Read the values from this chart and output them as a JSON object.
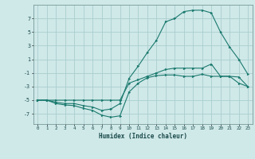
{
  "xlabel": "Humidex (Indice chaleur)",
  "xlim": [
    -0.5,
    23.5
  ],
  "ylim": [
    -8.5,
    9.0
  ],
  "yticks": [
    -7,
    -5,
    -3,
    -1,
    1,
    3,
    5,
    7
  ],
  "xticks": [
    0,
    1,
    2,
    3,
    4,
    5,
    6,
    7,
    8,
    9,
    10,
    11,
    12,
    13,
    14,
    15,
    16,
    17,
    18,
    19,
    20,
    21,
    22,
    23
  ],
  "background_color": "#cfe8e8",
  "grid_color": "#aacece",
  "line_color": "#1a7a6e",
  "line1_x": [
    0,
    1,
    2,
    3,
    4,
    5,
    6,
    7,
    8,
    9,
    10,
    11,
    12,
    13,
    14,
    15,
    16,
    17,
    18,
    19,
    20,
    21,
    22,
    23
  ],
  "line1_y": [
    -5,
    -5,
    -5.5,
    -5.7,
    -5.8,
    -6.2,
    -6.5,
    -7.2,
    -7.5,
    -7.3,
    -3.8,
    -2.5,
    -1.7,
    -1.4,
    -1.3,
    -1.3,
    -1.5,
    -1.5,
    -1.2,
    -1.5,
    -1.5,
    -1.5,
    -1.6,
    -3.0
  ],
  "line2_x": [
    0,
    1,
    2,
    3,
    4,
    5,
    6,
    7,
    8,
    9,
    10,
    11,
    12,
    13,
    14,
    15,
    16,
    17,
    18,
    19,
    20,
    21,
    22,
    23
  ],
  "line2_y": [
    -5,
    -5,
    -5.3,
    -5.5,
    -5.5,
    -5.8,
    -6.0,
    -6.5,
    -6.3,
    -5.5,
    -1.8,
    0.0,
    2.0,
    3.8,
    6.5,
    7.0,
    8.0,
    8.2,
    8.2,
    7.8,
    5.0,
    2.8,
    1.0,
    -1.2
  ],
  "line3_x": [
    0,
    1,
    2,
    3,
    4,
    5,
    6,
    7,
    8,
    9,
    10,
    11,
    12,
    13,
    14,
    15,
    16,
    17,
    18,
    19,
    20,
    21,
    22,
    23
  ],
  "line3_y": [
    -5,
    -5,
    -5.0,
    -5.0,
    -5.0,
    -5.0,
    -5.0,
    -5.0,
    -5.0,
    -5.0,
    -2.5,
    -2.0,
    -1.5,
    -1.0,
    -0.5,
    -0.3,
    -0.3,
    -0.3,
    -0.3,
    0.3,
    -1.5,
    -1.5,
    -2.5,
    -3.0
  ]
}
